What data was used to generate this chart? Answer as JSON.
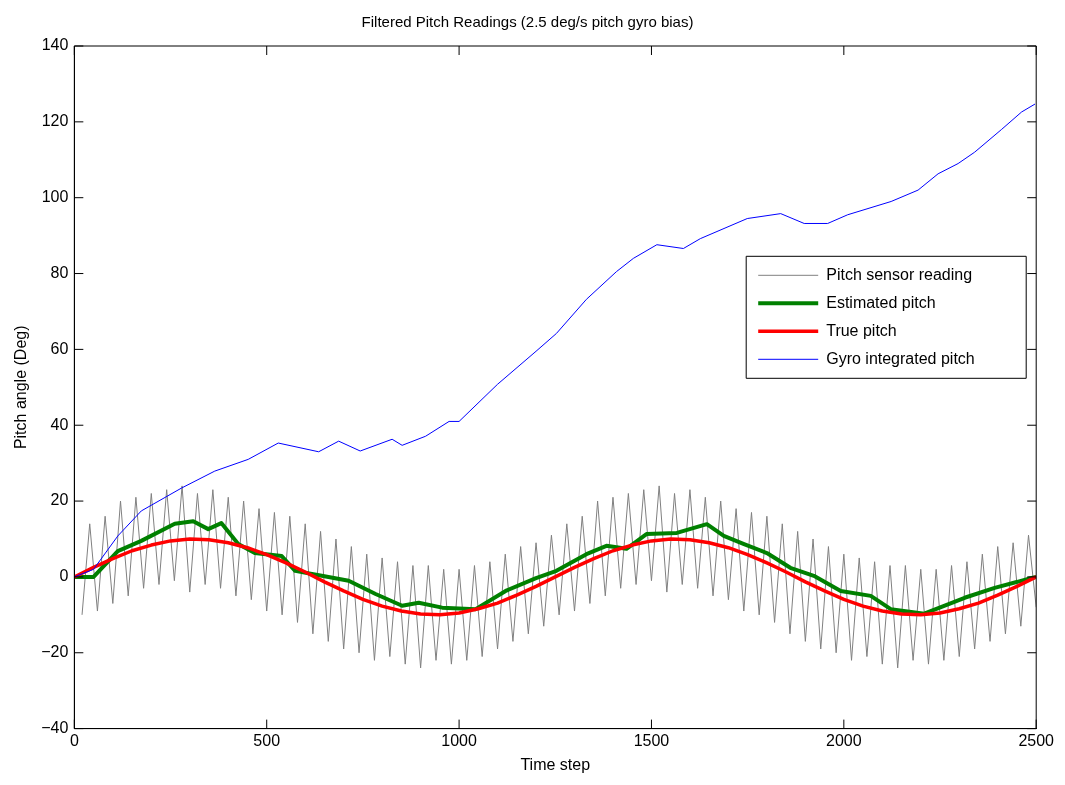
{
  "chart_data": {
    "type": "line",
    "title": "Filtered Pitch Readings (2.5 deg/s pitch gyro bias)",
    "xlabel": "Time step",
    "ylabel": "Pitch angle (Deg)",
    "xlim": [
      0,
      2500
    ],
    "xticks": [
      0,
      500,
      1000,
      1500,
      2000,
      2500
    ],
    "ylim": [
      -40,
      140
    ],
    "yticks": [
      -40,
      -20,
      0,
      20,
      40,
      60,
      80,
      100,
      120,
      140
    ],
    "grid": false,
    "legend": "right",
    "marker": "none",
    "line_style": "solid",
    "series": [
      {
        "name": "Pitch sensor reading",
        "color": "#808080",
        "x": [
          20,
          40,
          60,
          80,
          100,
          120,
          140,
          160,
          180,
          200,
          220,
          240,
          260,
          280,
          300,
          320,
          340,
          360,
          380,
          400,
          420,
          440,
          460,
          480,
          500,
          520,
          540,
          560,
          580,
          600,
          620,
          640,
          660,
          680,
          700,
          720,
          740,
          760,
          780,
          800,
          820,
          840,
          860,
          880,
          900,
          920,
          940,
          960,
          980,
          1000,
          1020,
          1040,
          1060,
          1080,
          1100,
          1120,
          1140,
          1160,
          1180,
          1200,
          1220,
          1240,
          1260,
          1280,
          1300,
          1320,
          1340,
          1360,
          1380,
          1400,
          1420,
          1440,
          1460,
          1480,
          1500,
          1520,
          1540,
          1560,
          1580,
          1600,
          1620,
          1640,
          1660,
          1680,
          1700,
          1720,
          1740,
          1760,
          1780,
          1800,
          1820,
          1840,
          1860,
          1880,
          1900,
          1920,
          1940,
          1960,
          1980,
          2000,
          2020,
          2040,
          2060,
          2080,
          2100,
          2120,
          2140,
          2160,
          2180,
          2200,
          2220,
          2240,
          2260,
          2280,
          2300,
          2320,
          2340,
          2360,
          2380,
          2400,
          2420,
          2440,
          2460,
          2480,
          2500
        ],
        "values": [
          -10,
          14,
          -9,
          16,
          -7,
          20,
          -5,
          21,
          -3,
          22,
          -2,
          23,
          -1,
          24,
          -4,
          22,
          -2,
          23,
          -3,
          21,
          -5,
          20,
          -6,
          18,
          -9,
          17,
          -10,
          16,
          -12,
          14,
          -15,
          12,
          -17,
          10,
          -19,
          8,
          -20,
          6,
          -22,
          5,
          -21,
          4,
          -23,
          3,
          -24,
          3,
          -22,
          2,
          -23,
          2,
          -22,
          3,
          -21,
          4,
          -19,
          6,
          -17,
          8,
          -15,
          9,
          -13,
          11,
          -10,
          14,
          -9,
          16,
          -7,
          20,
          -5,
          21,
          -3,
          22,
          -2,
          23,
          -1,
          24,
          -4,
          22,
          -2,
          23,
          -3,
          21,
          -5,
          20,
          -6,
          18,
          -9,
          17,
          -10,
          16,
          -12,
          14,
          -15,
          12,
          -17,
          10,
          -19,
          8,
          -20,
          6,
          -22,
          5,
          -21,
          4,
          -23,
          3,
          -24,
          3,
          -22,
          2,
          -23,
          2,
          -22,
          3,
          -21,
          4,
          -19,
          6,
          -17,
          8,
          -15,
          9,
          -13,
          11,
          -8
        ]
      },
      {
        "name": "Estimated pitch",
        "color": "#008000",
        "x": [
          0,
          50,
          113,
          174,
          261,
          309,
          348,
          382,
          426,
          469,
          539,
          574,
          643,
          713,
          783,
          852,
          895,
          956,
          1043,
          1121,
          1200,
          1253,
          1331,
          1383,
          1435,
          1487,
          1566,
          1644,
          1688,
          1739,
          1800,
          1861,
          1922,
          1992,
          2070,
          2122,
          2209,
          2314,
          2392,
          2488,
          2500
        ],
        "values": [
          0,
          0,
          6.8,
          9.5,
          14,
          14.7,
          12.6,
          14.2,
          8.7,
          6.3,
          5.5,
          1.6,
          0.3,
          -1,
          -4.5,
          -7.6,
          -6.8,
          -8.1,
          -8.5,
          -3.7,
          -0.3,
          1.6,
          6,
          8.2,
          7.4,
          11.3,
          11.6,
          13.9,
          10.8,
          8.7,
          6.3,
          2.4,
          0.3,
          -3.7,
          -5,
          -8.5,
          -9.7,
          -5.5,
          -2.9,
          -0.3,
          0
        ]
      },
      {
        "name": "True pitch",
        "color": "#ff0000",
        "x": [
          0,
          50,
          100,
          150,
          200,
          250,
          300,
          350,
          400,
          450,
          500,
          550,
          600,
          650,
          700,
          750,
          800,
          850,
          900,
          950,
          1000,
          1050,
          1100,
          1150,
          1200,
          1250,
          1300,
          1350,
          1400,
          1450,
          1500,
          1550,
          1600,
          1650,
          1700,
          1750,
          1800,
          1850,
          1900,
          1950,
          2000,
          2050,
          2100,
          2150,
          2200,
          2250,
          2300,
          2350,
          2400,
          2450,
          2500
        ],
        "values": [
          0,
          2.5,
          4.8,
          6.9,
          8.4,
          9.5,
          10,
          9.8,
          9,
          7.7,
          5.9,
          3.7,
          1.3,
          -1.3,
          -3.7,
          -5.9,
          -7.7,
          -9,
          -9.8,
          -10,
          -9.5,
          -8.4,
          -6.9,
          -4.8,
          -2.5,
          0,
          2.5,
          4.8,
          6.9,
          8.4,
          9.5,
          10,
          9.8,
          9,
          7.7,
          5.9,
          3.7,
          1.3,
          -1.3,
          -3.7,
          -5.9,
          -7.7,
          -9,
          -9.8,
          -10,
          -9.5,
          -8.4,
          -6.9,
          -4.8,
          -2.5,
          0
        ]
      },
      {
        "name": "Gyro integrated pitch",
        "color": "#0000ff",
        "x": [
          0,
          50,
          113,
          174,
          278,
          365,
          452,
          530,
          635,
          687,
          743,
          826,
          852,
          913,
          974,
          1000,
          1100,
          1200,
          1253,
          1331,
          1409,
          1453,
          1514,
          1583,
          1627,
          1749,
          1836,
          1897,
          1958,
          2010,
          2123,
          2193,
          2245,
          2297,
          2340,
          2410,
          2462,
          2497
        ],
        "values": [
          0,
          2,
          10.8,
          17.4,
          23.4,
          27.9,
          31,
          35.3,
          33,
          35.8,
          33.2,
          36.3,
          34.7,
          37.1,
          41,
          41,
          50.8,
          59.5,
          64.2,
          73.2,
          80.5,
          84,
          87.6,
          86.6,
          89.2,
          94.5,
          95.8,
          93.2,
          93.2,
          95.5,
          99,
          102,
          106.3,
          109,
          112,
          118,
          122.6,
          124.7
        ]
      }
    ]
  }
}
